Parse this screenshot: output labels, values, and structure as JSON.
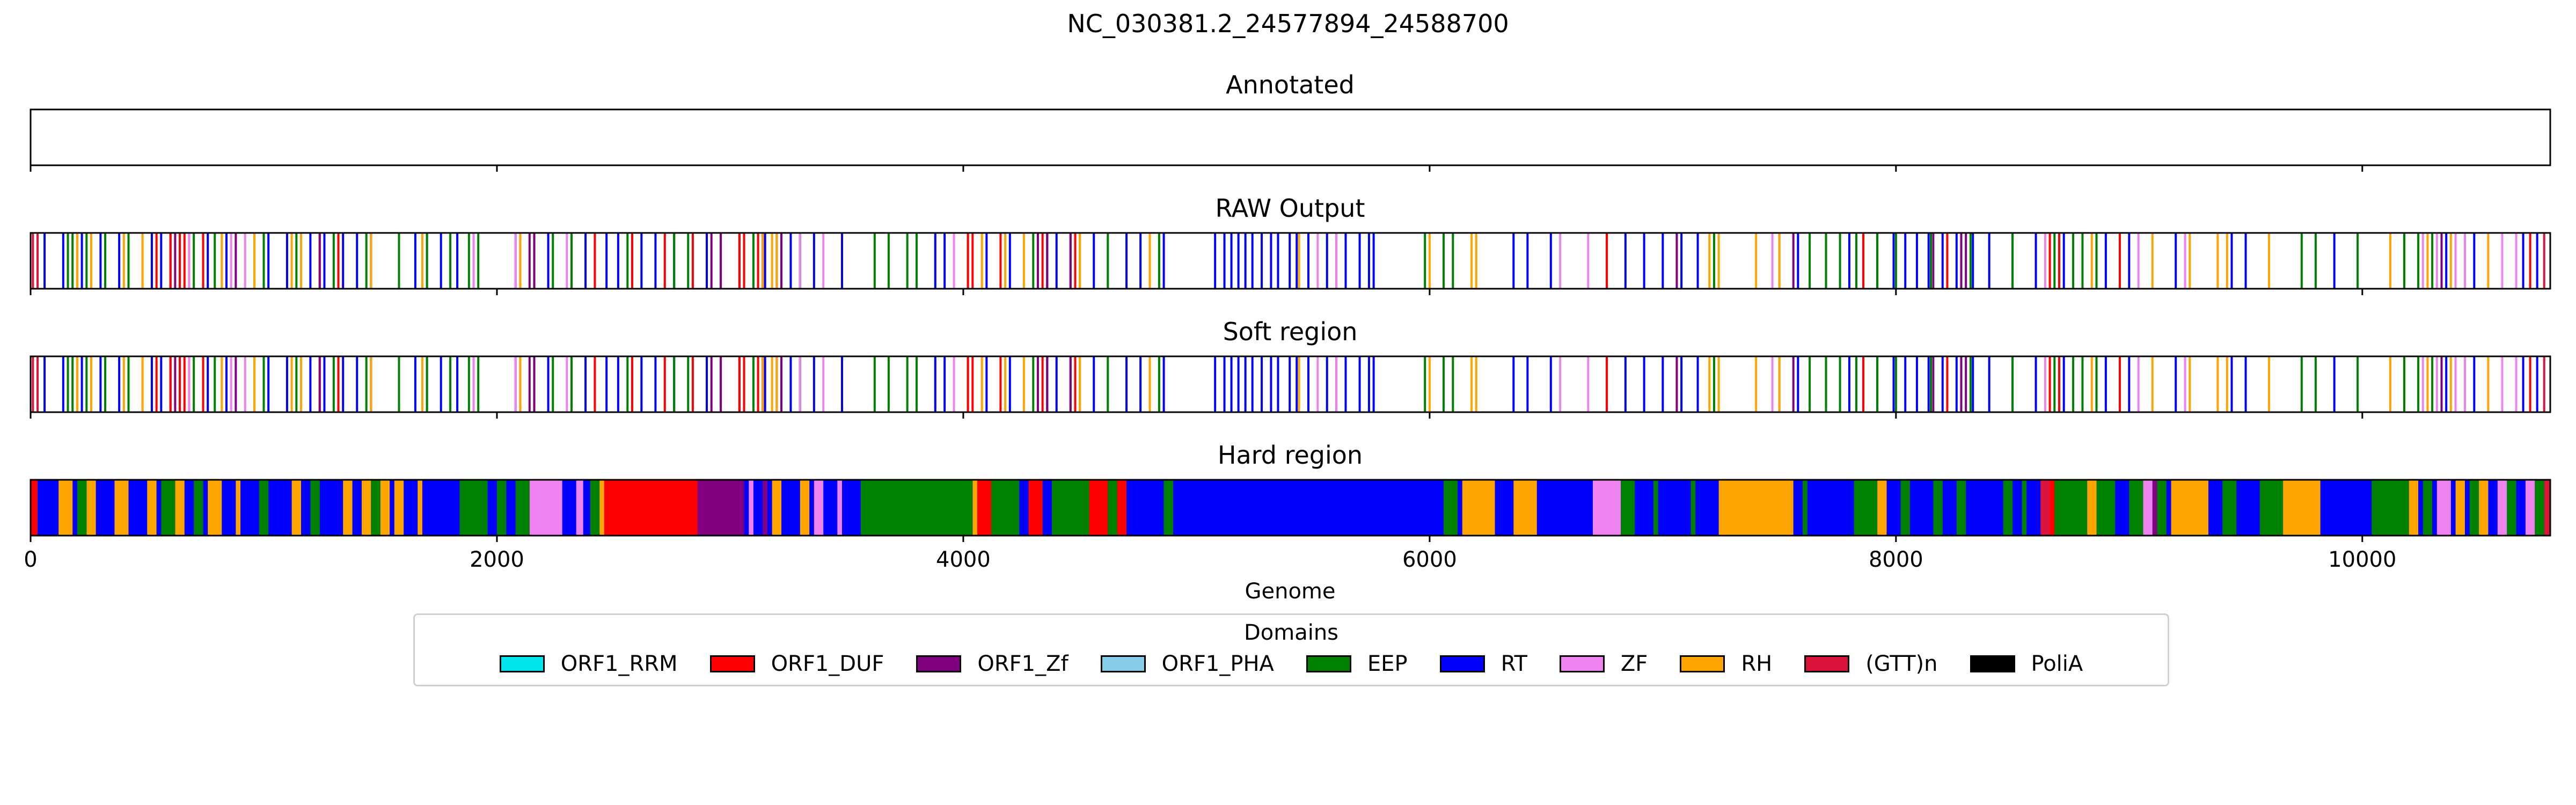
{
  "chart_data": {
    "type": "bar",
    "title": "NC_030381.2_24577894_24588700",
    "xlabel": "Genome",
    "xlim": [
      0,
      10806
    ],
    "xticks": [
      0,
      2000,
      4000,
      6000,
      8000,
      10000
    ],
    "xtick_labels": [
      "0",
      "2000",
      "4000",
      "6000",
      "8000",
      "10000"
    ],
    "legend": {
      "title": "Domains",
      "placement": "bottom-center",
      "entries": [
        {
          "name": "ORF1_RRM",
          "color": "#00e5ee"
        },
        {
          "name": "ORF1_DUF",
          "color": "#ff0000"
        },
        {
          "name": "ORF1_Zf",
          "color": "#800080"
        },
        {
          "name": "ORF1_PHA",
          "color": "#87ceeb"
        },
        {
          "name": "EEP",
          "color": "#008000"
        },
        {
          "name": "RT",
          "color": "#0000ff"
        },
        {
          "name": "ZF",
          "color": "#ee82ee"
        },
        {
          "name": "RH",
          "color": "#ffa500"
        },
        {
          "name": "(GTT)n",
          "color": "#dc143c"
        },
        {
          "name": "PoliA",
          "color": "#000000"
        }
      ]
    },
    "panels": [
      {
        "title": "Annotated",
        "mode": "empty",
        "features": []
      },
      {
        "title": "RAW Output",
        "mode": "lines",
        "features": [
          {
            "d": "(GTT)n",
            "pos": [
              10,
              30,
              10780
            ]
          },
          {
            "d": "RT",
            "pos": [
              60,
              140,
              220,
              300,
              380,
              480,
              520,
              560,
              600,
              640,
              760,
              840,
              1020,
              1100,
              1200,
              1260,
              1340,
              1400,
              1460,
              1650,
              1700,
              1760,
              1830,
              1900,
              2080,
              2220,
              2380,
              2470,
              2520,
              2620,
              2680,
              2760,
              2900,
              3040,
              3150,
              3200,
              3260,
              3300,
              3360,
              3480,
              3880,
              3920,
              4100,
              4200,
              4400,
              4560,
              4700,
              4760,
              4800,
              4860,
              5080,
              5120,
              5150,
              5180,
              5210,
              5240,
              5280,
              5320,
              5350,
              5400,
              5430,
              5480,
              5560,
              5600,
              5640,
              5700,
              5740,
              5760,
              6360,
              6420,
              6520,
              6760,
              6840,
              6920,
              7000,
              7080,
              7150,
              7500,
              7580,
              7800,
              7860,
              7920,
              7990,
              8040,
              8090,
              8140,
              8200,
              8260,
              8330,
              8400,
              8500,
              8600,
              8720,
              8900,
              9000,
              9200,
              9440,
              9500,
              9880,
              10180,
              10360,
              10480,
              10600,
              10690,
              10750
            ]
          },
          {
            "d": "EEP",
            "pos": [
              160,
              180,
              200,
              240,
              320,
              420,
              700,
              790,
              960,
              1000,
              1140,
              1300,
              1440,
              1580,
              1700,
              1800,
              1880,
              1920,
              2240,
              2320,
              2560,
              2760,
              2820,
              3040,
              3100,
              3300,
              3620,
              3680,
              3760,
              3800,
              4020,
              4300,
              4360,
              4460,
              4500,
              4620,
              4840,
              5980,
              6060,
              6100,
              7220,
              7630,
              7700,
              7760,
              7830,
              7920,
              8000,
              8150,
              8320,
              8500,
              8680,
              8760,
              8800,
              8860,
              9600,
              9740,
              9800,
              9980,
              10180,
              10240,
              10300
            ]
          },
          {
            "d": "ORF1_DUF",
            "pos": [
              540,
              600,
              640,
              660,
              740,
              1240,
              1320,
              2420,
              2580,
              2720,
              2840,
              2960,
              3040,
              3060,
              3120,
              3140,
              4020,
              4040,
              4160,
              4340,
              4360,
              4480,
              4800,
              6760,
              7860,
              8220,
              8660,
              8700,
              8960,
              10720
            ]
          },
          {
            "d": "ORF1_Zf",
            "pos": [
              620,
              680,
              880,
              1240,
              2140,
              2160,
              2160,
              2920,
              2960,
              3140,
              3220,
              4320,
              4360,
              4460,
              7060,
              7560,
              8160,
              8280,
              8300,
              10340
            ]
          },
          {
            "d": "ZF",
            "pos": [
              680,
              860,
              920,
              1900,
              2080,
              2100,
              2300,
              3300,
              3400,
              3960,
              5520,
              5600,
              6560,
              6680,
              7470,
              8640,
              9040,
              9240,
              10260,
              10320,
              10400,
              10440,
              10600,
              10660
            ]
          },
          {
            "d": "RH",
            "pos": [
              200,
              260,
              400,
              480,
              820,
              960,
              1120,
              1160,
              1460,
              1680,
              2100,
              3140,
              3180,
              3200,
              4080,
              4180,
              4260,
              4500,
              4800,
              5440,
              6000,
              6180,
              6200,
              7200,
              7240,
              7400,
              7500,
              8840,
              9100,
              9260,
              9380,
              9420,
              9600,
              10120,
              10280,
              10380,
              10540
            ]
          }
        ]
      },
      {
        "title": "Soft region",
        "mode": "lines",
        "same_as": "RAW Output",
        "features": []
      },
      {
        "title": "Hard region",
        "mode": "segments",
        "base": "RT",
        "features": [
          {
            "d": "ORF1_DUF",
            "s": [
              [
                0,
                30
              ],
              [
                2450,
                2860
              ],
              [
                2220,
                2260
              ],
              [
                4060,
                4120
              ],
              [
                4280,
                4340
              ],
              [
                4540,
                4620
              ],
              [
                4660,
                4700
              ],
              [
                8640,
                8680
              ]
            ]
          },
          {
            "d": "(GTT)n",
            "s": [
              [
                8620,
                8660
              ],
              [
                10780,
                10806
              ]
            ]
          },
          {
            "d": "ORF1_Zf",
            "s": [
              [
                2860,
                3060
              ],
              [
                3140,
                3160
              ],
              [
                3180,
                3200
              ],
              [
                4380,
                4420
              ],
              [
                9100,
                9120
              ]
            ]
          },
          {
            "d": "ZF",
            "s": [
              [
                2140,
                2280
              ],
              [
                2340,
                2370
              ],
              [
                3360,
                3400
              ],
              [
                3460,
                3480
              ],
              [
                3080,
                3100
              ],
              [
                6700,
                6820
              ],
              [
                9060,
                9100
              ],
              [
                9260,
                9300
              ],
              [
                10320,
                10380
              ],
              [
                10580,
                10640
              ],
              [
                10700,
                10740
              ]
            ]
          },
          {
            "d": "RH",
            "s": [
              [
                120,
                180
              ],
              [
                240,
                280
              ],
              [
                360,
                420
              ],
              [
                500,
                540
              ],
              [
                620,
                660
              ],
              [
                760,
                820
              ],
              [
                880,
                900
              ],
              [
                1120,
                1160
              ],
              [
                1340,
                1380
              ],
              [
                1420,
                1460
              ],
              [
                1500,
                1540
              ],
              [
                1560,
                1600
              ],
              [
                1660,
                1680
              ],
              [
                2440,
                2460
              ],
              [
                3180,
                3220
              ],
              [
                3300,
                3340
              ],
              [
                4040,
                4060
              ],
              [
                6140,
                6280
              ],
              [
                6360,
                6460
              ],
              [
                7240,
                7560
              ],
              [
                7920,
                7960
              ],
              [
                8820,
                8860
              ],
              [
                9180,
                9340
              ],
              [
                9660,
                9820
              ],
              [
                10200,
                10240
              ],
              [
                10400,
                10440
              ],
              [
                10500,
                10540
              ]
            ]
          },
          {
            "d": "EEP",
            "s": [
              [
                200,
                240
              ],
              [
                560,
                620
              ],
              [
                700,
                740
              ],
              [
                980,
                1020
              ],
              [
                1200,
                1240
              ],
              [
                1460,
                1500
              ],
              [
                1840,
                1960
              ],
              [
                2000,
                2040
              ],
              [
                2080,
                2140
              ],
              [
                2400,
                2440
              ],
              [
                3560,
                4040
              ],
              [
                4120,
                4240
              ],
              [
                4380,
                4540
              ],
              [
                4620,
                4660
              ],
              [
                4860,
                4900
              ],
              [
                6060,
                6120
              ],
              [
                6820,
                6880
              ],
              [
                6960,
                6980
              ],
              [
                7120,
                7140
              ],
              [
                7600,
                7620
              ],
              [
                7820,
                7920
              ],
              [
                8020,
                8060
              ],
              [
                8160,
                8200
              ],
              [
                8260,
                8300
              ],
              [
                8460,
                8500
              ],
              [
                8540,
                8560
              ],
              [
                8680,
                8820
              ],
              [
                8860,
                8940
              ],
              [
                9000,
                9060
              ],
              [
                9120,
                9160
              ],
              [
                9400,
                9460
              ],
              [
                9560,
                9660
              ],
              [
                10040,
                10200
              ],
              [
                10260,
                10300
              ],
              [
                10460,
                10500
              ],
              [
                10620,
                10660
              ],
              [
                10740,
                10780
              ]
            ]
          }
        ]
      }
    ]
  }
}
